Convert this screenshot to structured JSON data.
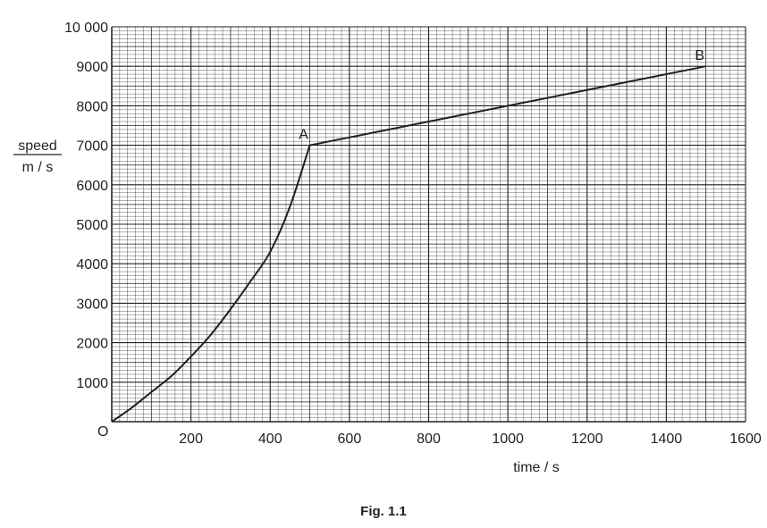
{
  "caption": "Fig. 1.1",
  "chart_data": {
    "type": "line",
    "xlabel": "time / s",
    "ylabel_top": "speed",
    "ylabel_bottom": "m / s",
    "origin_label": "O",
    "xlim": [
      0,
      1600
    ],
    "ylim": [
      0,
      10000
    ],
    "x_ticks": [
      200,
      400,
      600,
      800,
      1000,
      1200,
      1400,
      1600
    ],
    "x_tick_labels": [
      "200",
      "400",
      "600",
      "800",
      "1000",
      "1200",
      "1400",
      "1600"
    ],
    "y_ticks": [
      1000,
      2000,
      3000,
      4000,
      5000,
      6000,
      7000,
      8000,
      9000,
      10000
    ],
    "y_tick_labels": [
      "1000",
      "2000",
      "3000",
      "4000",
      "5000",
      "6000",
      "7000",
      "8000",
      "9000",
      "10 000"
    ],
    "grid": true,
    "series": [
      {
        "x": [
          0,
          50,
          100,
          150,
          200,
          250,
          300,
          350,
          400,
          450,
          500,
          1500
        ],
        "y": [
          0,
          350,
          750,
          1150,
          1650,
          2200,
          2850,
          3550,
          4300,
          5450,
          7000,
          9000
        ]
      }
    ],
    "points": [
      {
        "label": "A",
        "x": 500,
        "y": 7000
      },
      {
        "label": "B",
        "x": 1500,
        "y": 9000
      }
    ]
  }
}
